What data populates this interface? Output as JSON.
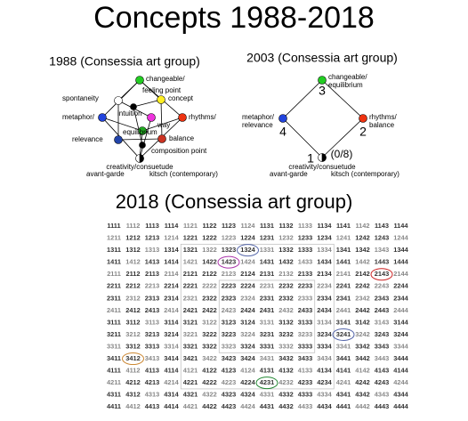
{
  "title": "Concepts 1988-2018",
  "diagram1988": {
    "title": "1988 (Consessia art group)",
    "labels": [
      "changeable/",
      "feeling point",
      "spontaneity",
      "concept",
      "metaphor/",
      "intuition",
      "rhythms/",
      "way",
      "equilibrium",
      "relevance",
      "balance",
      "composition point",
      "creativity/consuetude",
      "avant-garde",
      "kitsch (contemporary)"
    ]
  },
  "diagram2003": {
    "title": "2003 (Consessia art group)",
    "labels": [
      "changeable/",
      "equilibrium",
      "3",
      "metaphor/",
      "relevance",
      "4",
      "rhythms/",
      "balance",
      "2",
      "1",
      "(0/8)",
      "creativity/consuetude",
      "avant-garde",
      "kitsch (contemporary)"
    ]
  },
  "grid2018": {
    "title": "2018 (Consessia art group)",
    "rows": [
      [
        "1111",
        "1112",
        "1113",
        "1114",
        "1121",
        "1122",
        "1123",
        "1124",
        "1131",
        "1132",
        "1133",
        "1134",
        "1141",
        "1142",
        "1143",
        "1144"
      ],
      [
        "1211",
        "1212",
        "1213",
        "1214",
        "1221",
        "1222",
        "1223",
        "1224",
        "1231",
        "1232",
        "1233",
        "1234",
        "1241",
        "1242",
        "1243",
        "1244"
      ],
      [
        "1311",
        "1312",
        "1313",
        "1314",
        "1321",
        "1322",
        "1323",
        "1324",
        "1331",
        "1332",
        "1333",
        "1334",
        "1341",
        "1342",
        "1343",
        "1344"
      ],
      [
        "1411",
        "1412",
        "1413",
        "1414",
        "1421",
        "1422",
        "1423",
        "1424",
        "1431",
        "1432",
        "1433",
        "1434",
        "1441",
        "1442",
        "1443",
        "1444"
      ],
      [
        "2111",
        "2112",
        "2113",
        "2114",
        "2121",
        "2122",
        "2123",
        "2124",
        "2131",
        "2132",
        "2133",
        "2134",
        "2141",
        "2142",
        "2143",
        "2144"
      ],
      [
        "2211",
        "2212",
        "2213",
        "2214",
        "2221",
        "2222",
        "2223",
        "2224",
        "2231",
        "2232",
        "2233",
        "2234",
        "2241",
        "2242",
        "2243",
        "2244"
      ],
      [
        "2311",
        "2312",
        "2313",
        "2314",
        "2321",
        "2322",
        "2323",
        "2324",
        "2331",
        "2332",
        "2333",
        "2334",
        "2341",
        "2342",
        "2343",
        "2344"
      ],
      [
        "2411",
        "2412",
        "2413",
        "2414",
        "2421",
        "2422",
        "2423",
        "2424",
        "2431",
        "2432",
        "2433",
        "2434",
        "2441",
        "2442",
        "2443",
        "2444"
      ],
      [
        "3111",
        "3112",
        "3113",
        "3114",
        "3121",
        "3122",
        "3123",
        "3124",
        "3131",
        "3132",
        "3133",
        "3134",
        "3141",
        "3142",
        "3143",
        "3144"
      ],
      [
        "3211",
        "3212",
        "3213",
        "3214",
        "3221",
        "3222",
        "3223",
        "3224",
        "3231",
        "3232",
        "3233",
        "3234",
        "3241",
        "3242",
        "3243",
        "3244"
      ],
      [
        "3311",
        "3312",
        "3313",
        "3314",
        "3321",
        "3322",
        "3323",
        "3324",
        "3331",
        "3332",
        "3333",
        "3334",
        "3341",
        "3342",
        "3343",
        "3344"
      ],
      [
        "3411",
        "3412",
        "3413",
        "3414",
        "3421",
        "3422",
        "3423",
        "3424",
        "3431",
        "3432",
        "3433",
        "3434",
        "3441",
        "3442",
        "3443",
        "3444"
      ],
      [
        "4111",
        "4112",
        "4113",
        "4114",
        "4121",
        "4122",
        "4123",
        "4124",
        "4131",
        "4132",
        "4133",
        "4134",
        "4141",
        "4142",
        "4143",
        "4144"
      ],
      [
        "4211",
        "4212",
        "4213",
        "4214",
        "4221",
        "4222",
        "4223",
        "4224",
        "4231",
        "4232",
        "4233",
        "4234",
        "4241",
        "4242",
        "4243",
        "4244"
      ],
      [
        "4311",
        "4312",
        "4313",
        "4314",
        "4321",
        "4322",
        "4323",
        "4324",
        "4331",
        "4332",
        "4333",
        "4334",
        "4341",
        "4342",
        "4343",
        "4344"
      ],
      [
        "4411",
        "4412",
        "4413",
        "4414",
        "4421",
        "4422",
        "4423",
        "4424",
        "4431",
        "4432",
        "4433",
        "4434",
        "4441",
        "4442",
        "4443",
        "4444"
      ]
    ]
  }
}
